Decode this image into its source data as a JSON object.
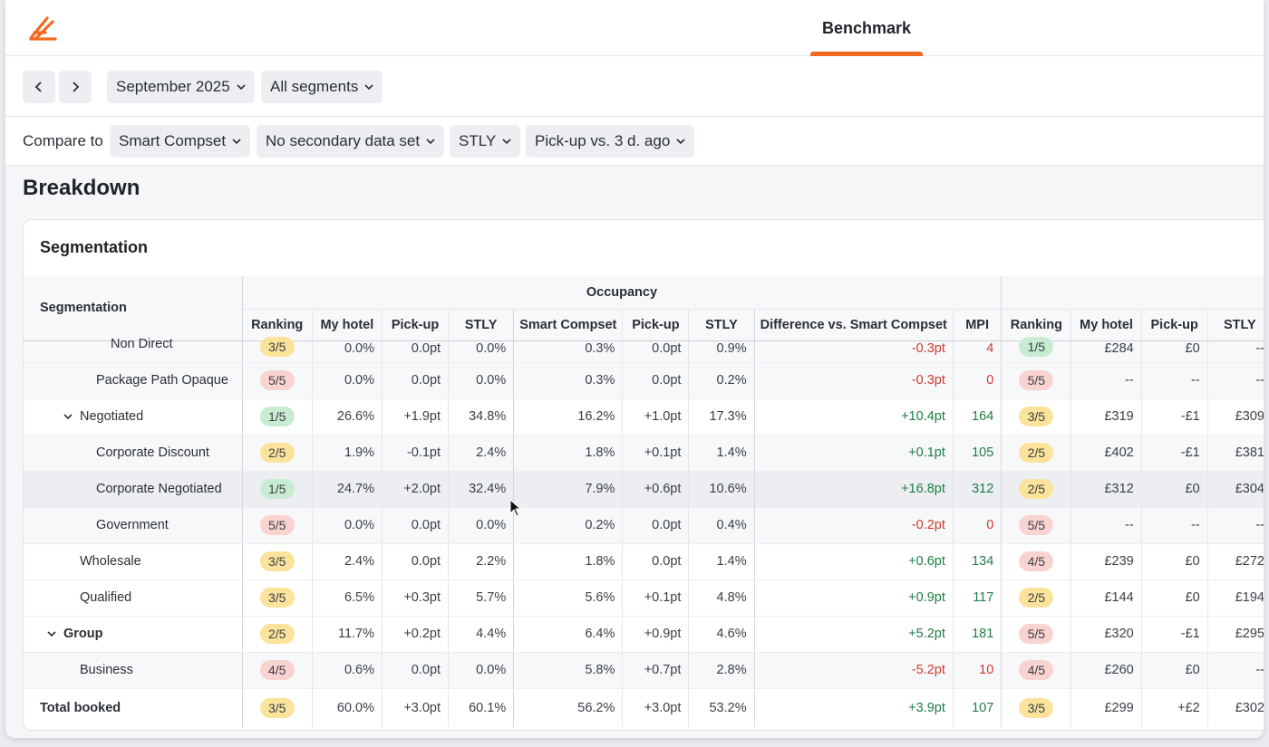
{
  "header": {
    "active_tab": "Benchmark",
    "accent_color": "#f26a21"
  },
  "toolbar": {
    "prev_icon": "chevron-left-icon",
    "next_icon": "chevron-right-icon",
    "date_select": "September 2025",
    "segment_select": "All segments",
    "compare_label": "Compare to",
    "compset_select": "Smart Compset",
    "secondary_select": "No secondary data set",
    "stly_select": "STLY",
    "pickup_select": "Pick-up vs. 3 d. ago"
  },
  "page": {
    "section_title": "Breakdown",
    "card_title": "Segmentation"
  },
  "table": {
    "group_header": "Occupancy",
    "segmentation_header": "Segmentation",
    "columns": [
      "Ranking",
      "My hotel",
      "Pick-up",
      "STLY",
      "Smart Compset",
      "Pick-up",
      "STLY",
      "Difference vs. Smart Compset",
      "MPI",
      "Ranking",
      "My hotel",
      "Pick-up",
      "STLY"
    ],
    "rows": [
      {
        "name": "Non Direct",
        "rank": "3/5",
        "my": "0.0%",
        "pu": "0.0pt",
        "stly": "0.0%",
        "cs": "0.3%",
        "cspu": "0.0pt",
        "csstly": "0.9%",
        "diff": "-0.3pt",
        "mpi": "4",
        "rank2": "1/5",
        "my2": "£284",
        "pu2": "£0",
        "stly2": "--"
      },
      {
        "name": "Package Path Opaque",
        "rank": "5/5",
        "my": "0.0%",
        "pu": "0.0pt",
        "stly": "0.0%",
        "cs": "0.3%",
        "cspu": "0.0pt",
        "csstly": "0.2%",
        "diff": "-0.3pt",
        "mpi": "0",
        "rank2": "5/5",
        "my2": "--",
        "pu2": "--",
        "stly2": "--"
      },
      {
        "name": "Negotiated",
        "rank": "1/5",
        "my": "26.6%",
        "pu": "+1.9pt",
        "stly": "34.8%",
        "cs": "16.2%",
        "cspu": "+1.0pt",
        "csstly": "17.3%",
        "diff": "+10.4pt",
        "mpi": "164",
        "rank2": "3/5",
        "my2": "£319",
        "pu2": "-£1",
        "stly2": "£309"
      },
      {
        "name": "Corporate Discount",
        "rank": "2/5",
        "my": "1.9%",
        "pu": "-0.1pt",
        "stly": "2.4%",
        "cs": "1.8%",
        "cspu": "+0.1pt",
        "csstly": "1.4%",
        "diff": "+0.1pt",
        "mpi": "105",
        "rank2": "2/5",
        "my2": "£402",
        "pu2": "-£1",
        "stly2": "£381"
      },
      {
        "name": "Corporate Negotiated",
        "rank": "1/5",
        "my": "24.7%",
        "pu": "+2.0pt",
        "stly": "32.4%",
        "cs": "7.9%",
        "cspu": "+0.6pt",
        "csstly": "10.6%",
        "diff": "+16.8pt",
        "mpi": "312",
        "rank2": "2/5",
        "my2": "£312",
        "pu2": "£0",
        "stly2": "£304"
      },
      {
        "name": "Government",
        "rank": "5/5",
        "my": "0.0%",
        "pu": "0.0pt",
        "stly": "0.0%",
        "cs": "0.2%",
        "cspu": "0.0pt",
        "csstly": "0.4%",
        "diff": "-0.2pt",
        "mpi": "0",
        "rank2": "5/5",
        "my2": "--",
        "pu2": "--",
        "stly2": "--"
      },
      {
        "name": "Wholesale",
        "rank": "3/5",
        "my": "2.4%",
        "pu": "0.0pt",
        "stly": "2.2%",
        "cs": "1.8%",
        "cspu": "0.0pt",
        "csstly": "1.4%",
        "diff": "+0.6pt",
        "mpi": "134",
        "rank2": "4/5",
        "my2": "£239",
        "pu2": "£0",
        "stly2": "£272"
      },
      {
        "name": "Qualified",
        "rank": "3/5",
        "my": "6.5%",
        "pu": "+0.3pt",
        "stly": "5.7%",
        "cs": "5.6%",
        "cspu": "+0.1pt",
        "csstly": "4.8%",
        "diff": "+0.9pt",
        "mpi": "117",
        "rank2": "2/5",
        "my2": "£144",
        "pu2": "£0",
        "stly2": "£194"
      },
      {
        "name": "Group",
        "rank": "2/5",
        "my": "11.7%",
        "pu": "+0.2pt",
        "stly": "4.4%",
        "cs": "6.4%",
        "cspu": "+0.9pt",
        "csstly": "4.6%",
        "diff": "+5.2pt",
        "mpi": "181",
        "rank2": "5/5",
        "my2": "£320",
        "pu2": "-£1",
        "stly2": "£295"
      },
      {
        "name": "Business",
        "rank": "4/5",
        "my": "0.6%",
        "pu": "0.0pt",
        "stly": "0.0%",
        "cs": "5.8%",
        "cspu": "+0.7pt",
        "csstly": "2.8%",
        "diff": "-5.2pt",
        "mpi": "10",
        "rank2": "4/5",
        "my2": "£260",
        "pu2": "£0",
        "stly2": "--"
      }
    ],
    "total": {
      "name": "Total booked",
      "rank": "3/5",
      "my": "60.0%",
      "pu": "+3.0pt",
      "stly": "60.1%",
      "cs": "56.2%",
      "cspu": "+3.0pt",
      "csstly": "53.2%",
      "diff": "+3.9pt",
      "mpi": "107",
      "rank2": "3/5",
      "my2": "£299",
      "pu2": "+£2",
      "stly2": "£302"
    }
  }
}
